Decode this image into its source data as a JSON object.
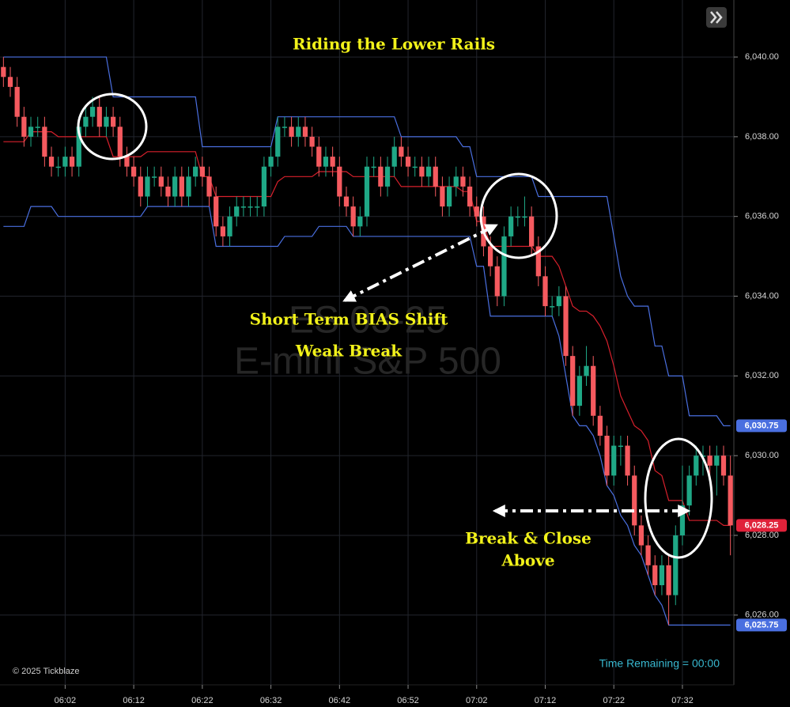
{
  "chart_data": {
    "type": "candlestick",
    "title": "Riding the Lower Rails",
    "categories": [
      null,
      null,
      null,
      null,
      null,
      null,
      null,
      null,
      null,
      "06:02",
      null,
      null,
      null,
      null,
      null,
      null,
      null,
      null,
      null,
      "06:12",
      null,
      null,
      null,
      null,
      null,
      null,
      null,
      null,
      null,
      "06:22",
      null,
      null,
      null,
      null,
      null,
      null,
      null,
      null,
      null,
      "06:32",
      null,
      null,
      null,
      null,
      null,
      null,
      null,
      null,
      null,
      "06:42",
      null,
      null,
      null,
      null,
      null,
      null,
      null,
      null,
      null,
      "06:52",
      null,
      null,
      null,
      null,
      null,
      null,
      null,
      null,
      null,
      "07:02",
      null,
      null,
      null,
      null,
      null,
      null,
      null,
      null,
      null,
      "07:12",
      null,
      null,
      null,
      null,
      null,
      null,
      null,
      null,
      null,
      "07:22",
      null,
      null,
      null,
      null,
      null,
      null,
      null,
      null,
      null,
      "07:32",
      null,
      null,
      null,
      null,
      null,
      null,
      null
    ],
    "open": [
      6039.75,
      6039.5,
      6039.25,
      6038.5,
      6038,
      6038.25,
      6038.25,
      6037.5,
      6037.25,
      6037.25,
      6037.5,
      6037.25,
      6038.25,
      6038.5,
      6038.75,
      6038.25,
      6038.5,
      6038.25,
      6037.5,
      6037.25,
      6037,
      6036.5,
      6037,
      6037,
      6036.75,
      6036.5,
      6037,
      6036.5,
      6037,
      6037.25,
      6037,
      6036.5,
      6035.75,
      6035.5,
      6036,
      6036.25,
      6036.25,
      6036.25,
      6036.25,
      6037.25,
      6037.5,
      6038.25,
      6038.25,
      6038,
      6038.25,
      6038,
      6037.75,
      6037.25,
      6037.5,
      6037.25,
      6036.5,
      6036.25,
      6035.75,
      6036,
      6037.25,
      6037.25,
      6036.75,
      6037.25,
      6037.75,
      6037.5,
      6037.25,
      6037.25,
      6037,
      6037.25,
      6036.75,
      6036.25,
      6036.75,
      6037,
      6036.75,
      6036.25,
      6036,
      6035.25,
      6034.75,
      6034,
      6035.5,
      6036,
      6036,
      6036,
      6035.25,
      6034.5,
      6033.75,
      6033.75,
      6034,
      6032.5,
      6031.25,
      6032,
      6032.25,
      6031,
      6030.5,
      6029.5,
      6030.25,
      6030.25,
      6029.5,
      6028.25,
      6027.75,
      6027.25,
      6026.75,
      6027.25,
      6026.5,
      6028,
      6028.75,
      6029.5,
      6030,
      6030,
      6029.75,
      6030,
      6029.5
    ],
    "high": [
      6040,
      6039.75,
      6039.5,
      6038.75,
      6038.5,
      6038.5,
      6038.5,
      6037.75,
      6037.5,
      6037.75,
      6037.75,
      6038.5,
      6038.75,
      6039,
      6039,
      6038.75,
      6038.75,
      6038.5,
      6037.75,
      6037.5,
      6037.25,
      6037.25,
      6037.25,
      6037.25,
      6037,
      6037.25,
      6037.25,
      6037.25,
      6037.5,
      6037.5,
      6037.25,
      6036.75,
      6036,
      6036.25,
      6036.5,
      6036.5,
      6036.5,
      6036.5,
      6037.5,
      6037.75,
      6038.5,
      6038.5,
      6038.5,
      6038.5,
      6038.5,
      6038.25,
      6038,
      6037.75,
      6037.75,
      6037.5,
      6036.75,
      6036.5,
      6036.25,
      6037.5,
      6037.5,
      6037.5,
      6037.5,
      6038,
      6038,
      6037.75,
      6037.5,
      6037.5,
      6037.5,
      6037.5,
      6037,
      6037,
      6037.25,
      6037.25,
      6037,
      6036.5,
      6036.25,
      6035.5,
      6035,
      6035.75,
      6036.25,
      6036.25,
      6036.5,
      6036.25,
      6035.5,
      6034.75,
      6034,
      6034.25,
      6034.25,
      6032.75,
      6032.25,
      6032.75,
      6032.5,
      6031.25,
      6030.75,
      6030.5,
      6030.5,
      6030.5,
      6029.75,
      6028.5,
      6028,
      6027.5,
      6027.5,
      6027.5,
      6028.25,
      6029.75,
      6029.75,
      6030.25,
      6030.25,
      6030.25,
      6030.25,
      6030.25,
      6030
    ],
    "low": [
      6039.25,
      6039,
      6038.25,
      6037.75,
      6037.75,
      6038,
      6037.25,
      6037,
      6037,
      6037,
      6037,
      6037,
      6038,
      6038.25,
      6038,
      6038,
      6038,
      6037.25,
      6037,
      6036.75,
      6036.25,
      6036.25,
      6036.75,
      6036.5,
      6036.25,
      6036.25,
      6036.25,
      6036.25,
      6036.75,
      6036.75,
      6036.25,
      6035.5,
      6035.25,
      6035.25,
      6035.75,
      6036,
      6036,
      6036,
      6036,
      6037,
      6037.25,
      6038,
      6037.75,
      6037.75,
      6037.75,
      6037.5,
      6037,
      6037,
      6037,
      6036.25,
      6036,
      6035.5,
      6035.5,
      6035.75,
      6037,
      6036.5,
      6036.5,
      6037,
      6037.25,
      6037,
      6037,
      6036.75,
      6036.75,
      6036.5,
      6036,
      6036,
      6036.5,
      6036.5,
      6036,
      6035.75,
      6035,
      6034.5,
      6033.75,
      6033.75,
      6035.25,
      6035.75,
      6035.75,
      6035,
      6034.25,
      6033.5,
      6033.5,
      6033.5,
      6032.25,
      6031,
      6031,
      6031.75,
      6030.75,
      6030.25,
      6029.25,
      6029.25,
      6029.75,
      6029.25,
      6028,
      6027.5,
      6027,
      6026.5,
      6026.5,
      6025.75,
      6026.25,
      6027.75,
      6028.5,
      6029.25,
      6029.5,
      6029.5,
      6029,
      6029.25,
      6027.5
    ],
    "close": [
      6039.5,
      6039.25,
      6038.5,
      6038,
      6038.25,
      6038.25,
      6037.5,
      6037.25,
      6037.25,
      6037.5,
      6037.25,
      6038.25,
      6038.5,
      6038.75,
      6038.25,
      6038.5,
      6038.25,
      6037.5,
      6037.25,
      6037,
      6036.5,
      6037,
      6037,
      6036.75,
      6036.5,
      6037,
      6036.5,
      6037,
      6037.25,
      6037,
      6036.5,
      6035.75,
      6035.5,
      6036,
      6036.25,
      6036.25,
      6036.25,
      6036.25,
      6037.25,
      6037.5,
      6038.25,
      6038.25,
      6038,
      6038.25,
      6038,
      6037.75,
      6037.25,
      6037.5,
      6037.25,
      6036.5,
      6036.25,
      6035.75,
      6036,
      6037.25,
      6037.25,
      6036.75,
      6037.25,
      6037.75,
      6037.5,
      6037.25,
      6037.25,
      6037,
      6037.25,
      6036.75,
      6036.25,
      6036.75,
      6037,
      6036.75,
      6036.25,
      6036,
      6035.25,
      6034.75,
      6034,
      6035.5,
      6036,
      6036,
      6036,
      6035.25,
      6034.5,
      6033.75,
      6033.75,
      6034,
      6032.5,
      6031.25,
      6032,
      6032.25,
      6031,
      6030.5,
      6029.5,
      6030.25,
      6030.25,
      6029.5,
      6028.25,
      6027.75,
      6027.25,
      6026.75,
      6027.25,
      6026.5,
      6028,
      6028.75,
      6029.5,
      6030,
      6030,
      6029.75,
      6030,
      6029.5,
      6028.25
    ],
    "up_color": "#1fa886",
    "down_color": "#f55a5f",
    "overlays": [
      {
        "color": "#4a6fe0",
        "values": [
          6040,
          6040,
          6040,
          6040,
          6040,
          6040,
          6040,
          6040,
          6040,
          6040,
          6040,
          6040,
          6040,
          6040,
          6040,
          6040,
          6039,
          6039,
          6039,
          6039,
          6039,
          6039,
          6039,
          6039,
          6039,
          6039,
          6039,
          6039,
          6039,
          6037.75,
          6037.75,
          6037.75,
          6037.75,
          6037.75,
          6037.75,
          6037.75,
          6037.75,
          6037.75,
          6037.75,
          6037.75,
          6038.5,
          6038.5,
          6038.5,
          6038.5,
          6038.5,
          6038.5,
          6038.5,
          6038.5,
          6038.5,
          6038.5,
          6038.5,
          6038.5,
          6038.5,
          6038.5,
          6038.5,
          6038.5,
          6038.5,
          6038.5,
          6038,
          6038,
          6038,
          6038,
          6038,
          6038,
          6038,
          6038,
          6038,
          6037.75,
          6037.75,
          6037,
          6037,
          6037,
          6037,
          6037,
          6037,
          6037,
          6037,
          6037,
          6036.5,
          6036.5,
          6036.5,
          6036.5,
          6036.5,
          6036.5,
          6036.5,
          6036.5,
          6036.5,
          6036.5,
          6036.5,
          6035.5,
          6034.5,
          6034,
          6033.75,
          6033.75,
          6033.75,
          6032.75,
          6032.75,
          6032,
          6032,
          6032,
          6031,
          6031,
          6031,
          6031,
          6031,
          6030.75,
          6030.75
        ]
      },
      {
        "color": "#4a6fe0",
        "values": [
          6035.75,
          6035.75,
          6035.75,
          6035.75,
          6036.25,
          6036.25,
          6036.25,
          6036.25,
          6036,
          6036,
          6036,
          6036,
          6036,
          6036,
          6036,
          6036,
          6036,
          6036,
          6036,
          6036,
          6036,
          6036.25,
          6036.25,
          6036.25,
          6036.25,
          6036.25,
          6036.25,
          6036.25,
          6036.25,
          6036.25,
          6036.25,
          6035.25,
          6035.25,
          6035.25,
          6035.25,
          6035.25,
          6035.25,
          6035.25,
          6035.25,
          6035.25,
          6035.25,
          6035.5,
          6035.5,
          6035.5,
          6035.5,
          6035.5,
          6035.75,
          6035.75,
          6035.75,
          6035.75,
          6035.75,
          6035.5,
          6035.5,
          6035.5,
          6035.5,
          6035.5,
          6035.5,
          6035.5,
          6035.5,
          6035.5,
          6035.5,
          6035.5,
          6035.5,
          6035.5,
          6035.5,
          6035.5,
          6035.5,
          6035.5,
          6035.5,
          6034.75,
          6034.75,
          6033.5,
          6033.5,
          6033.5,
          6033.5,
          6033.5,
          6033.5,
          6033.5,
          6033.5,
          6033.5,
          6033.5,
          6033,
          6032,
          6031,
          6030.75,
          6030.75,
          6030.5,
          6030,
          6029.25,
          6029,
          6028.5,
          6028.25,
          6027.75,
          6027.5,
          6027,
          6026.5,
          6026.25,
          6025.75,
          6025.75,
          6025.75,
          6025.75,
          6025.75,
          6025.75,
          6025.75,
          6025.75,
          6025.75,
          6025.75
        ]
      },
      {
        "color": "#d8202c",
        "values": [
          6037.875,
          6037.875,
          6037.875,
          6037.875,
          6038.125,
          6038.125,
          6038.125,
          6038.125,
          6038,
          6038,
          6038,
          6038,
          6038,
          6038,
          6038,
          6038,
          6037.5,
          6037.5,
          6037.5,
          6037.5,
          6037.5,
          6037.625,
          6037.625,
          6037.625,
          6037.625,
          6037.625,
          6037.625,
          6037.625,
          6037.625,
          6037,
          6037,
          6036.5,
          6036.5,
          6036.5,
          6036.5,
          6036.5,
          6036.5,
          6036.5,
          6036.5,
          6036.5,
          6036.875,
          6037,
          6037,
          6037,
          6037,
          6037,
          6037.125,
          6037.125,
          6037.125,
          6037.125,
          6037.125,
          6037,
          6037,
          6037,
          6037,
          6037,
          6037,
          6037,
          6036.75,
          6036.75,
          6036.75,
          6036.75,
          6036.75,
          6036.75,
          6036.75,
          6036.75,
          6036.75,
          6036.625,
          6036.625,
          6035.875,
          6035.875,
          6035.25,
          6035.25,
          6035.25,
          6035.25,
          6035.25,
          6035.25,
          6035.25,
          6035,
          6035,
          6035,
          6034.75,
          6034.25,
          6033.75,
          6033.625,
          6033.625,
          6033.5,
          6033.25,
          6032.875,
          6032.25,
          6031.5,
          6031.125,
          6030.75,
          6030.625,
          6030.375,
          6029.625,
          6029.5,
          6028.875,
          6028.875,
          6028.875,
          6028.375,
          6028.375,
          6028.375,
          6028.375,
          6028.375,
          6028.25,
          6028.25
        ]
      }
    ],
    "ylim": [
      6024.25,
      6041.43
    ],
    "yticks": [
      {
        "value": 6026,
        "label": "6,026.00"
      },
      {
        "value": 6028,
        "label": "6,028.00"
      },
      {
        "value": 6030,
        "label": "6,030.00"
      },
      {
        "value": 6032,
        "label": "6,032.00"
      },
      {
        "value": 6034,
        "label": "6,034.00"
      },
      {
        "value": 6036,
        "label": "6,036.00"
      },
      {
        "value": 6038,
        "label": "6,038.00"
      },
      {
        "value": 6040,
        "label": "6,040.00"
      }
    ],
    "grid": true,
    "price_badges": [
      {
        "value": 6030.75,
        "label": "6,030.75",
        "color": "#4a6fe0"
      },
      {
        "value": 6028.25,
        "label": "6,028.25",
        "color": "#e0223a"
      },
      {
        "value": 6025.75,
        "label": "6,025.75",
        "color": "#4a6fe0"
      }
    ],
    "watermark": [
      "ES 03-25",
      "E-mini S&P 500"
    ],
    "annotations": [
      "Short Term BIAS Shift",
      "Weak Break",
      "Break & Close",
      "Above"
    ],
    "copyright": "© 2025 Tickblaze",
    "time_remaining": "Time Remaining = 00:00"
  }
}
